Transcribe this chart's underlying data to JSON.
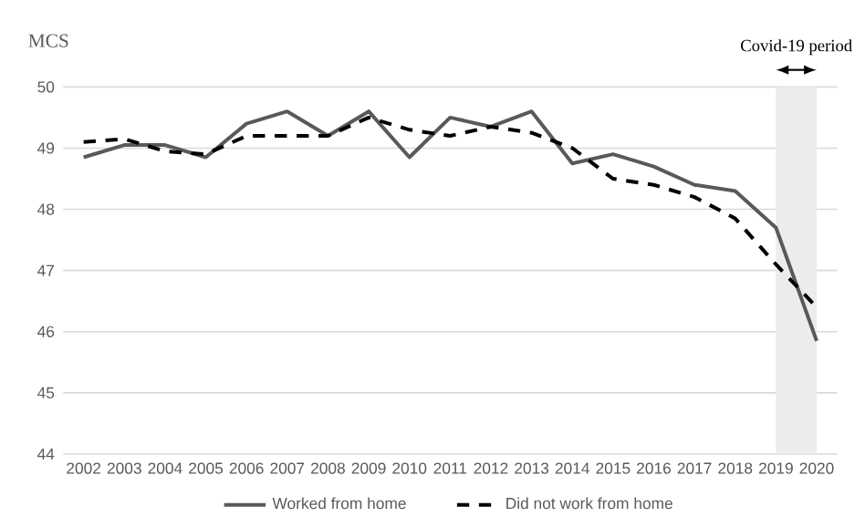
{
  "chart_data": {
    "type": "line",
    "ylabel": "MCS",
    "categories": [
      "2002",
      "2003",
      "2004",
      "2005",
      "2006",
      "2007",
      "2008",
      "2009",
      "2010",
      "2011",
      "2012",
      "2013",
      "2014",
      "2015",
      "2016",
      "2017",
      "2018",
      "2019",
      "2020"
    ],
    "series": [
      {
        "name": "Worked from home",
        "color": "#595959",
        "line_style": "solid",
        "values": [
          48.85,
          49.05,
          49.05,
          48.85,
          49.4,
          49.6,
          49.2,
          49.6,
          48.85,
          49.5,
          49.35,
          49.6,
          48.75,
          48.9,
          48.7,
          48.4,
          48.3,
          47.7,
          45.85
        ]
      },
      {
        "name": "Did not work from home",
        "color": "#000000",
        "line_style": "dashed",
        "values": [
          49.1,
          49.15,
          48.95,
          48.9,
          49.2,
          49.2,
          49.2,
          49.5,
          49.3,
          49.2,
          49.35,
          49.25,
          49.0,
          48.5,
          48.4,
          48.2,
          47.85,
          47.1,
          46.4
        ]
      }
    ],
    "ylim": [
      44,
      50
    ],
    "yticks": [
      44,
      45,
      46,
      47,
      48,
      49,
      50
    ],
    "grid": "y",
    "legend": "bottom",
    "marker": "none",
    "bands": [
      {
        "axis": "x",
        "from": "2019",
        "to": "2020",
        "label": "Covid-19 period",
        "color": "#ececec"
      }
    ]
  }
}
